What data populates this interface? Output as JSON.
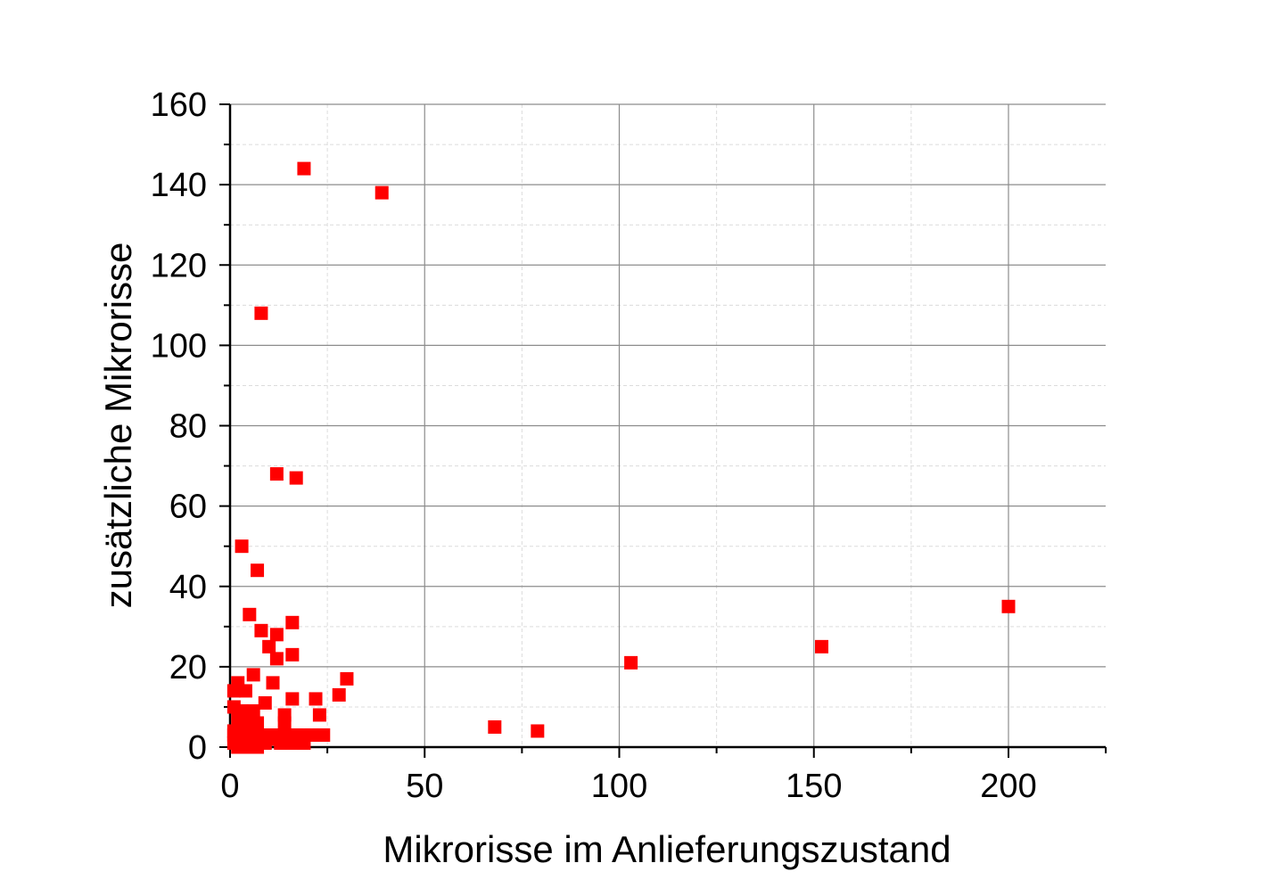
{
  "chart_data": {
    "type": "scatter",
    "title": "",
    "xlabel": "Mikrorisse im Anlieferungszustand",
    "ylabel": "zusätzliche Mikrorisse",
    "xlim": [
      0,
      225
    ],
    "ylim": [
      0,
      160
    ],
    "x_ticks": [
      "0",
      "50",
      "100",
      "150",
      "200"
    ],
    "y_ticks": [
      "0",
      "20",
      "40",
      "60",
      "80",
      "100",
      "120",
      "140",
      "160"
    ],
    "grid": true,
    "legend": "none",
    "marker": "square",
    "color": "#ff0000",
    "series": [
      {
        "points": [
          [
            19,
            144
          ],
          [
            39,
            138
          ],
          [
            8,
            108
          ],
          [
            12,
            68
          ],
          [
            17,
            67
          ],
          [
            3,
            50
          ],
          [
            7,
            44
          ],
          [
            5,
            33
          ],
          [
            16,
            31
          ],
          [
            8,
            29
          ],
          [
            12,
            28
          ],
          [
            10,
            25
          ],
          [
            16,
            23
          ],
          [
            12,
            22
          ],
          [
            6,
            18
          ],
          [
            30,
            17
          ],
          [
            2,
            16
          ],
          [
            11,
            16
          ],
          [
            4,
            14
          ],
          [
            1,
            14
          ],
          [
            28,
            13
          ],
          [
            16,
            12
          ],
          [
            22,
            12
          ],
          [
            9,
            11
          ],
          [
            1,
            10
          ],
          [
            3,
            9
          ],
          [
            6,
            9
          ],
          [
            14,
            8
          ],
          [
            23,
            8
          ],
          [
            2,
            7
          ],
          [
            4,
            7
          ],
          [
            7,
            6
          ],
          [
            14,
            6
          ],
          [
            68,
            5
          ],
          [
            79,
            4
          ],
          [
            1,
            4
          ],
          [
            3,
            4
          ],
          [
            5,
            4
          ],
          [
            1,
            3
          ],
          [
            4,
            3
          ],
          [
            7,
            3
          ],
          [
            10,
            3
          ],
          [
            12,
            3
          ],
          [
            15,
            3
          ],
          [
            17,
            3
          ],
          [
            19,
            3
          ],
          [
            21,
            3
          ],
          [
            23,
            3
          ],
          [
            24,
            3
          ],
          [
            2,
            2
          ],
          [
            5,
            2
          ],
          [
            8,
            2
          ],
          [
            11,
            2
          ],
          [
            14,
            2
          ],
          [
            18,
            2
          ],
          [
            1,
            1
          ],
          [
            3,
            1
          ],
          [
            6,
            1
          ],
          [
            9,
            1
          ],
          [
            13,
            1
          ],
          [
            16,
            1
          ],
          [
            19,
            1
          ],
          [
            2,
            0
          ],
          [
            5,
            0
          ],
          [
            7,
            0
          ],
          [
            103,
            21
          ],
          [
            152,
            25
          ],
          [
            200,
            35
          ]
        ]
      }
    ]
  }
}
